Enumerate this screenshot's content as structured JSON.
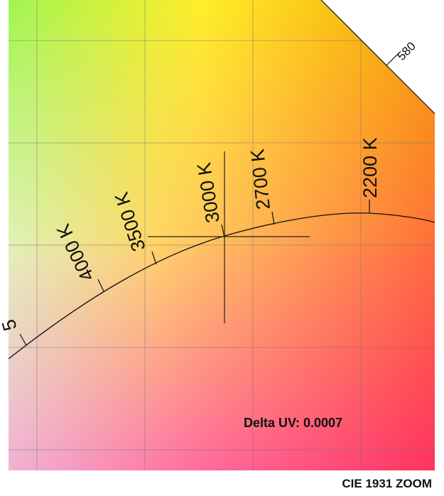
{
  "diagram": {
    "type": "cie-1931-zoom",
    "cct_labels": [
      {
        "cct": 4000,
        "label": "4000 K"
      },
      {
        "cct": 3500,
        "label": "3500 K"
      },
      {
        "cct": 3000,
        "label": "3000 K"
      },
      {
        "cct": 2700,
        "label": "2700 K"
      },
      {
        "cct": 2200,
        "label": "2200 K"
      }
    ],
    "partial_label": "5",
    "spectral_locus_label": "580",
    "delta_uv_label": "Delta UV: 0.0007",
    "grid": true
  },
  "footer": {
    "title": "CIE 1931 ZOOM"
  },
  "colors": {
    "top_left": "#a8f55a",
    "top_right": "#f7a700",
    "bottom_left": "#f2b0e0",
    "bottom_right": "#ff3a64",
    "text": "#111111"
  }
}
